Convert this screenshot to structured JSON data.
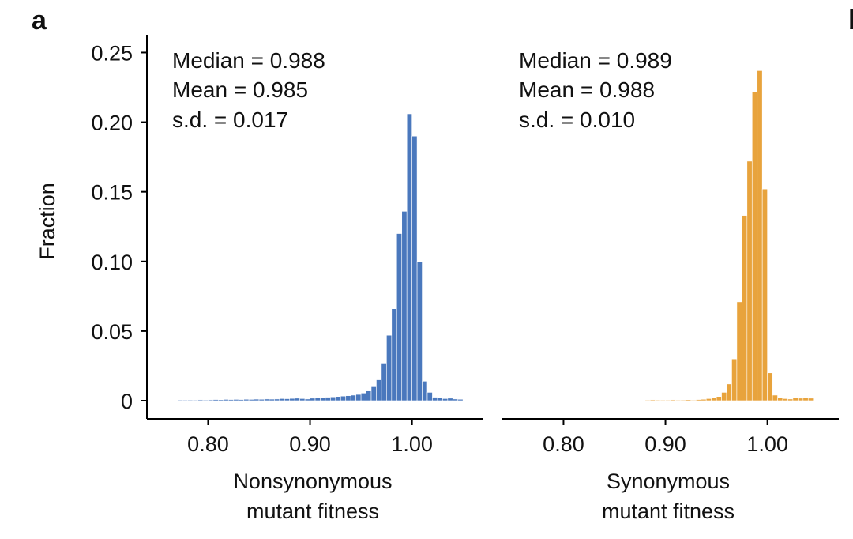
{
  "figure": {
    "panel_label": "a",
    "next_panel_label": "b"
  },
  "chart_data": [
    {
      "type": "bar",
      "title": "",
      "xlabel": [
        "Nonsynonymous",
        "mutant fitness"
      ],
      "ylabel": "Fraction",
      "color": "#4a78bd",
      "xlim": [
        0.74,
        1.07
      ],
      "ylim": [
        0,
        0.26
      ],
      "xticks": [
        0.8,
        0.9,
        1.0
      ],
      "xtick_labels": [
        "0.80",
        "0.90",
        "1.00"
      ],
      "yticks": [
        0,
        0.05,
        0.1,
        0.15,
        0.2,
        0.25
      ],
      "ytick_labels": [
        "0",
        "0.05",
        "0.10",
        "0.15",
        "0.20",
        "0.25"
      ],
      "stats": [
        "Median = 0.988",
        "Mean = 0.985",
        "s.d. = 0.017"
      ],
      "bin_width": 0.005,
      "bin_start": [
        0.77,
        0.775,
        0.78,
        0.785,
        0.79,
        0.795,
        0.8,
        0.805,
        0.81,
        0.815,
        0.82,
        0.825,
        0.83,
        0.835,
        0.84,
        0.845,
        0.85,
        0.855,
        0.86,
        0.865,
        0.87,
        0.875,
        0.88,
        0.885,
        0.89,
        0.895,
        0.9,
        0.905,
        0.91,
        0.915,
        0.92,
        0.925,
        0.93,
        0.935,
        0.94,
        0.945,
        0.95,
        0.955,
        0.96,
        0.965,
        0.97,
        0.975,
        0.98,
        0.985,
        0.99,
        0.995,
        1.0,
        1.005,
        1.01,
        1.015,
        1.02,
        1.025,
        1.03,
        1.035,
        1.04,
        1.045
      ],
      "values": [
        0.0005,
        0.0003,
        0.0005,
        0.0004,
        0.0006,
        0.0005,
        0.0006,
        0.0008,
        0.0007,
        0.0009,
        0.0008,
        0.0009,
        0.0008,
        0.001,
        0.0009,
        0.0011,
        0.001,
        0.0012,
        0.0011,
        0.0012,
        0.0015,
        0.0014,
        0.0016,
        0.0018,
        0.0015,
        0.0012,
        0.0018,
        0.002,
        0.0022,
        0.0025,
        0.0027,
        0.003,
        0.0033,
        0.0036,
        0.004,
        0.0045,
        0.0055,
        0.007,
        0.01,
        0.015,
        0.027,
        0.047,
        0.066,
        0.12,
        0.136,
        0.206,
        0.19,
        0.1,
        0.014,
        0.006,
        0.0025,
        0.002,
        0.0015,
        0.0018,
        0.0012,
        0.001
      ]
    },
    {
      "type": "bar",
      "title": "",
      "xlabel": [
        "Synonymous",
        "mutant fitness"
      ],
      "ylabel": "",
      "color": "#e8a33c",
      "xlim": [
        0.74,
        1.07
      ],
      "ylim": [
        0,
        0.26
      ],
      "xticks": [
        0.8,
        0.9,
        1.0
      ],
      "xtick_labels": [
        "0.80",
        "0.90",
        "1.00"
      ],
      "stats": [
        "Median = 0.989",
        "Mean = 0.988",
        "s.d. = 0.010"
      ],
      "bin_width": 0.005,
      "bin_start": [
        0.88,
        0.885,
        0.89,
        0.895,
        0.9,
        0.905,
        0.91,
        0.915,
        0.92,
        0.925,
        0.93,
        0.935,
        0.94,
        0.945,
        0.95,
        0.955,
        0.96,
        0.965,
        0.97,
        0.975,
        0.98,
        0.985,
        0.99,
        0.995,
        1.0,
        1.005,
        1.01,
        1.015,
        1.02,
        1.025,
        1.03,
        1.035,
        1.04
      ],
      "values": [
        0.0004,
        0.0006,
        0.0005,
        0.0003,
        0.0004,
        0.0006,
        0.0004,
        0.0005,
        0.0007,
        0.0004,
        0.0008,
        0.001,
        0.0015,
        0.002,
        0.003,
        0.006,
        0.012,
        0.03,
        0.071,
        0.133,
        0.172,
        0.222,
        0.237,
        0.152,
        0.02,
        0.004,
        0.002,
        0.0015,
        0.0012,
        0.002,
        0.0018,
        0.002,
        0.0018
      ]
    }
  ]
}
